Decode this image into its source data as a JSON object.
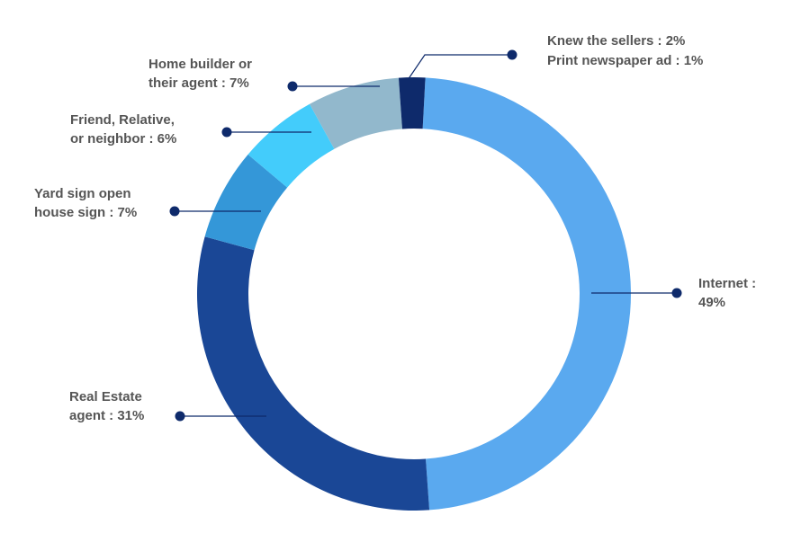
{
  "chart_data": {
    "type": "donut",
    "title": "",
    "slices": [
      {
        "label_lines": [
          "Internet :",
          "49%"
        ],
        "value": 49,
        "color": "#5aa9ef"
      },
      {
        "label_lines": [
          "Real Estate",
          "agent : 31%"
        ],
        "value": 31,
        "color": "#1a4796"
      },
      {
        "label_lines": [
          "Yard sign open",
          "house sign : 7%"
        ],
        "value": 7,
        "color": "#3497d8"
      },
      {
        "label_lines": [
          "Friend, Relative,",
          "or neighbor : 6%"
        ],
        "value": 6,
        "color": "#43ccfb"
      },
      {
        "label_lines": [
          "Home builder or",
          "their agent : 7%"
        ],
        "value": 7,
        "color": "#92b8cc"
      },
      {
        "label_lines": [],
        "value": 2,
        "color": "#0e2a6b"
      }
    ],
    "combined_label_lines": [
      "Knew the sellers : 2%",
      "Print newspaper ad : 1%"
    ],
    "legend": "callouts",
    "colors": {
      "leader": "#0e2a6b",
      "label_text": "#555555",
      "background": "#ffffff"
    }
  }
}
